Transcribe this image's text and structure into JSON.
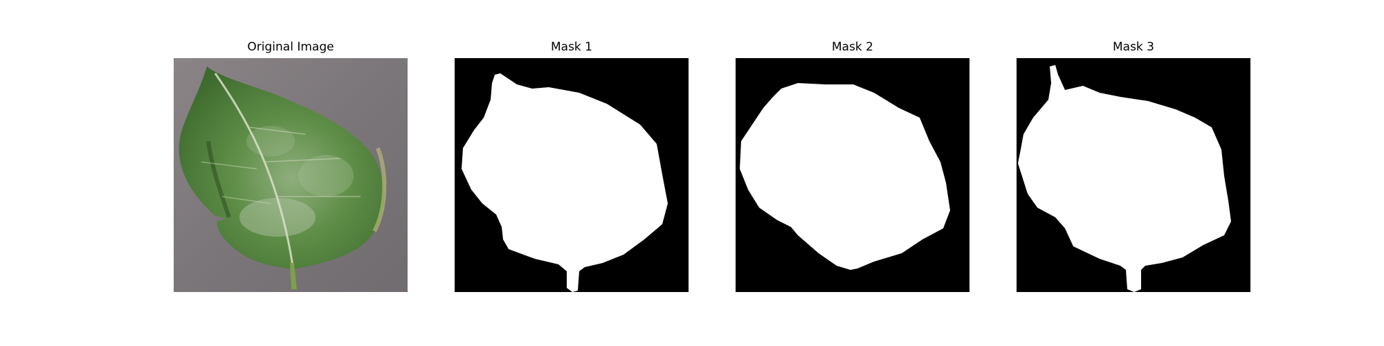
{
  "figure": {
    "panels": [
      {
        "title": "Original Image",
        "kind": "photo"
      },
      {
        "title": "Mask 1",
        "kind": "mask"
      },
      {
        "title": "Mask 2",
        "kind": "mask"
      },
      {
        "title": "Mask 3",
        "kind": "mask"
      }
    ]
  },
  "colors": {
    "mask_background": "#000000",
    "mask_foreground": "#ffffff",
    "photo_background": "#7f7a7c",
    "leaf_dark": "#3f6a2f",
    "leaf_mid": "#5a8a45",
    "leaf_light": "#9cb58c",
    "stem": "#7fa04a"
  }
}
